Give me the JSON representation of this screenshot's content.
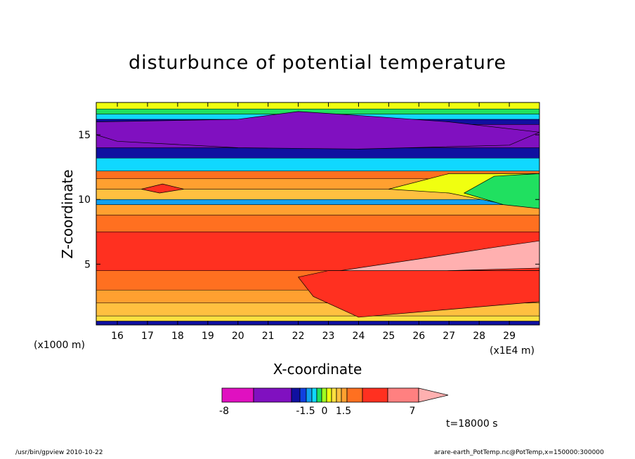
{
  "chart_data": {
    "type": "heatmap",
    "title": "disturbunce of potential temperature",
    "xlabel": "X-coordinate",
    "ylabel": "Z-coordinate",
    "x_unit_left": "(x1000 m)",
    "x_unit_right": "(x1E4 m)",
    "x_ticks": [
      "16",
      "17",
      "18",
      "19",
      "20",
      "21",
      "22",
      "23",
      "24",
      "25",
      "26",
      "27",
      "28",
      "29"
    ],
    "y_ticks": [
      "5",
      "10",
      "15"
    ],
    "xlim": [
      15.3,
      30.0
    ],
    "ylim": [
      0.3,
      17.5
    ],
    "colorbar": {
      "labels": [
        "-8",
        "-1.5",
        "0",
        "1.5",
        "7"
      ],
      "colors": [
        "#e010c0",
        "#8010c0",
        "#1010a0",
        "#1040e0",
        "#10a0f0",
        "#10d8ff",
        "#20e060",
        "#a0ff20",
        "#f0ff10",
        "#ffe040",
        "#ffc040",
        "#ffa030",
        "#ff7020",
        "#ff3020",
        "#ff8080",
        "#ffb0b0"
      ]
    },
    "bands": [
      {
        "z0": 0.3,
        "z1": 0.6,
        "color": "#1010a0"
      },
      {
        "z0": 0.6,
        "z1": 1.0,
        "color": "#ffe040"
      },
      {
        "z0": 1.0,
        "z1": 2.0,
        "color": "#ffc040"
      },
      {
        "z0": 2.0,
        "z1": 3.0,
        "color": "#ffa030"
      },
      {
        "z0": 3.0,
        "z1": 4.5,
        "color": "#ff7020"
      },
      {
        "z0": 4.5,
        "z1": 7.5,
        "color": "#ff3020"
      },
      {
        "z0": 7.5,
        "z1": 8.8,
        "color": "#ff7020"
      },
      {
        "z0": 8.8,
        "z1": 9.6,
        "color": "#ffa030"
      },
      {
        "z0": 9.6,
        "z1": 10.0,
        "color": "#10a0f0"
      },
      {
        "z0": 10.0,
        "z1": 10.8,
        "color": "#ffc040"
      },
      {
        "z0": 10.8,
        "z1": 11.6,
        "color": "#ffa030"
      },
      {
        "z0": 11.6,
        "z1": 12.2,
        "color": "#ff7020"
      },
      {
        "z0": 12.2,
        "z1": 13.2,
        "color": "#10d8ff"
      },
      {
        "z0": 13.2,
        "z1": 14.0,
        "color": "#1010a0"
      },
      {
        "z0": 14.0,
        "z1": 15.8,
        "color": "#8010c0"
      },
      {
        "z0": 15.8,
        "z1": 16.2,
        "color": "#1010a0"
      },
      {
        "z0": 16.2,
        "z1": 16.6,
        "color": "#10d8ff"
      },
      {
        "z0": 16.6,
        "z1": 17.0,
        "color": "#20e060"
      },
      {
        "z0": 17.0,
        "z1": 17.5,
        "color": "#f0ff10"
      }
    ],
    "regions": [
      {
        "color": "#ffb0b0",
        "points": [
          [
            23.4,
            4.5
          ],
          [
            26,
            5.4
          ],
          [
            28.5,
            6.3
          ],
          [
            30,
            6.8
          ],
          [
            30,
            4.7
          ],
          [
            27,
            4.5
          ],
          [
            24.5,
            4.0
          ],
          [
            23.4,
            4.2
          ]
        ]
      },
      {
        "color": "#ff3020",
        "points": [
          [
            24,
            0.9
          ],
          [
            27,
            1.5
          ],
          [
            30,
            2.1
          ],
          [
            30,
            4.5
          ],
          [
            23,
            4.5
          ],
          [
            22,
            4.0
          ],
          [
            22.5,
            2.5
          ]
        ]
      },
      {
        "color": "#f0ff10",
        "points": [
          [
            25,
            10.8
          ],
          [
            27,
            12.0
          ],
          [
            30,
            12.0
          ],
          [
            30,
            9.5
          ],
          [
            28.5,
            9.8
          ],
          [
            27,
            10.5
          ]
        ]
      },
      {
        "color": "#20e060",
        "points": [
          [
            27.5,
            10.5
          ],
          [
            28.5,
            11.8
          ],
          [
            30,
            12.0
          ],
          [
            30,
            9.3
          ],
          [
            28.8,
            9.6
          ]
        ]
      },
      {
        "color": "#8010c0",
        "points": [
          [
            20,
            16.2
          ],
          [
            22,
            16.8
          ],
          [
            24,
            16.5
          ],
          [
            27,
            16.0
          ],
          [
            30,
            15.2
          ],
          [
            29,
            14.2
          ],
          [
            24,
            13.9
          ],
          [
            20,
            14.0
          ],
          [
            16,
            14.5
          ],
          [
            15.3,
            15.0
          ],
          [
            15.3,
            16.0
          ]
        ]
      },
      {
        "color": "#ff3020",
        "points": [
          [
            16.8,
            10.8
          ],
          [
            17.5,
            11.2
          ],
          [
            18.2,
            10.8
          ],
          [
            17.4,
            10.5
          ]
        ]
      }
    ]
  },
  "time_label": "t=18000 s",
  "footer": {
    "left": "/usr/bin/gpview   2010-10-22",
    "right": "arare-earth_PotTemp.nc@PotTemp,x=150000:300000"
  }
}
